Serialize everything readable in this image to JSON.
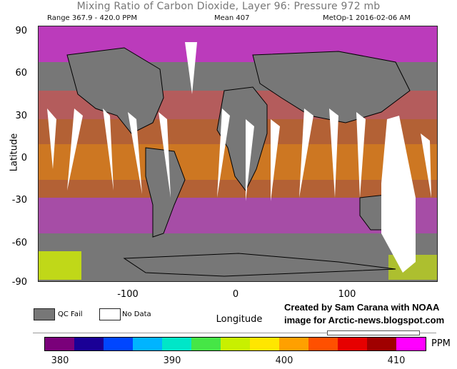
{
  "title": "Mixing Ratio of Carbon Dioxide, Layer 96: Pressure 972 mb",
  "header": {
    "range": "Range 367.9 - 420.0 PPM",
    "mean": "Mean 407",
    "source": "MetOp-1 2016-02-06 AM"
  },
  "axes": {
    "ylabel": "Latitude",
    "xlabel": "Longitude",
    "y_ticks": [
      "90",
      "60",
      "30",
      "0",
      "-30",
      "-60",
      "-90"
    ],
    "x_ticks": [
      "-100",
      "0",
      "100"
    ]
  },
  "legend": {
    "qc_fail": "QC Fail",
    "no_data": "No Data",
    "qc_fail_color": "#777777",
    "no_data_color": "#ffffff"
  },
  "credit": {
    "line1": "Created by Sam Carana with NOAA",
    "line2": "image for Arctic-news.blogspot.com"
  },
  "colorbar": {
    "unit": "PPM",
    "ticks": [
      "380",
      "390",
      "400",
      "410"
    ],
    "colors": [
      "#7a007a",
      "#1a0096",
      "#0046ff",
      "#00b4ff",
      "#00e6c8",
      "#46e646",
      "#c8f000",
      "#ffe600",
      "#ffa000",
      "#ff5000",
      "#e60000",
      "#a00000",
      "#ff00ff"
    ]
  }
}
